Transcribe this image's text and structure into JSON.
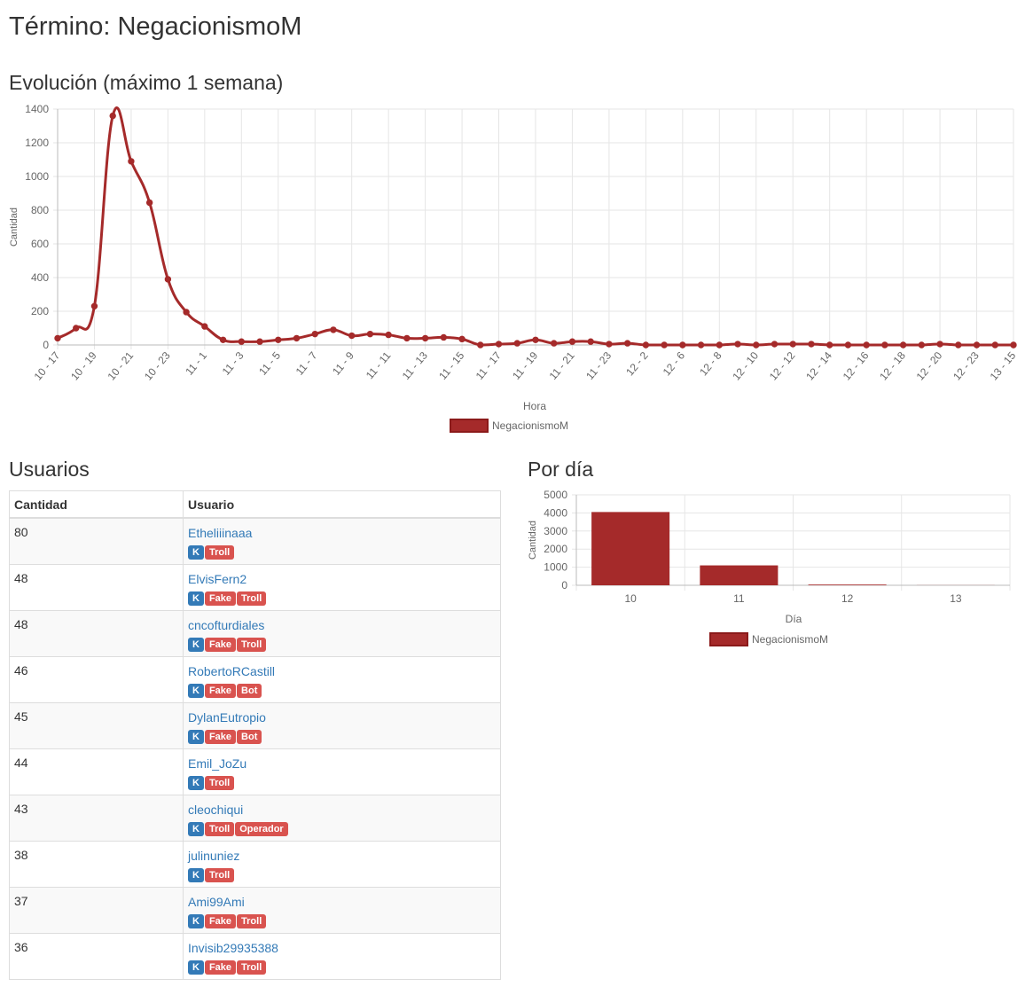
{
  "page": {
    "title": "Término: NegacionismoM"
  },
  "evolution": {
    "heading": "Evolución (máximo 1 semana)"
  },
  "users": {
    "heading": "Usuarios",
    "columns": [
      "Cantidad",
      "Usuario"
    ],
    "rows": [
      {
        "count": "80",
        "user": "Etheliiinaaa",
        "tags": [
          "K",
          "Troll"
        ]
      },
      {
        "count": "48",
        "user": "ElvisFern2",
        "tags": [
          "K",
          "Fake",
          "Troll"
        ]
      },
      {
        "count": "48",
        "user": "cncofturdiales",
        "tags": [
          "K",
          "Fake",
          "Troll"
        ]
      },
      {
        "count": "46",
        "user": "RobertoRCastill",
        "tags": [
          "K",
          "Fake",
          "Bot"
        ]
      },
      {
        "count": "45",
        "user": "DylanEutropio",
        "tags": [
          "K",
          "Fake",
          "Bot"
        ]
      },
      {
        "count": "44",
        "user": "Emil_JoZu",
        "tags": [
          "K",
          "Troll"
        ]
      },
      {
        "count": "43",
        "user": "cleochiqui",
        "tags": [
          "K",
          "Troll",
          "Operador"
        ]
      },
      {
        "count": "38",
        "user": "julinuniez",
        "tags": [
          "K",
          "Troll"
        ]
      },
      {
        "count": "37",
        "user": "Ami99Ami",
        "tags": [
          "K",
          "Fake",
          "Troll"
        ]
      },
      {
        "count": "36",
        "user": "Invisib29935388",
        "tags": [
          "K",
          "Fake",
          "Troll"
        ]
      }
    ]
  },
  "per_day": {
    "heading": "Por día"
  },
  "colors": {
    "series": "#a52a2a",
    "link": "#337ab7",
    "badge_k": "#337ab7",
    "badge_red": "#d9534f",
    "grid": "#e6e6e6"
  },
  "chart_data": [
    {
      "type": "line",
      "xlabel": "Hora",
      "ylabel": "Cantidad",
      "ylim": [
        0,
        1400
      ],
      "yticks": [
        0,
        200,
        400,
        600,
        800,
        1000,
        1200,
        1400
      ],
      "grid": true,
      "legend_position": "bottom",
      "x": [
        "10 - 17",
        "10 - 18",
        "10 - 19",
        "10 - 20",
        "10 - 21",
        "10 - 22",
        "10 - 23",
        "11 - 0",
        "11 - 1",
        "11 - 2",
        "11 - 3",
        "11 - 4",
        "11 - 5",
        "11 - 6",
        "11 - 7",
        "11 - 8",
        "11 - 9",
        "11 - 10",
        "11 - 11",
        "11 - 12",
        "11 - 13",
        "11 - 14",
        "11 - 15",
        "11 - 16",
        "11 - 17",
        "11 - 18",
        "11 - 19",
        "11 - 20",
        "11 - 21",
        "11 - 22",
        "11 - 23",
        "12 - 0",
        "12 - 2",
        "12 - 4",
        "12 - 6",
        "12 - 7",
        "12 - 8",
        "12 - 9",
        "12 - 10",
        "12 - 11",
        "12 - 12",
        "12 - 13",
        "12 - 14",
        "12 - 15",
        "12 - 16",
        "12 - 17",
        "12 - 18",
        "12 - 19",
        "12 - 20",
        "12 - 21",
        "12 - 23",
        "13 - 0",
        "13 - 15"
      ],
      "tick_labels": [
        "10 - 17",
        "10 - 19",
        "10 - 21",
        "10 - 23",
        "11 - 1",
        "11 - 3",
        "11 - 5",
        "11 - 7",
        "11 - 9",
        "11 - 11",
        "11 - 13",
        "11 - 15",
        "11 - 17",
        "11 - 19",
        "11 - 21",
        "11 - 23",
        "12 - 2",
        "12 - 6",
        "12 - 8",
        "12 - 10",
        "12 - 12",
        "12 - 14",
        "12 - 16",
        "12 - 18",
        "12 - 20",
        "12 - 23",
        "13 - 15"
      ],
      "series": [
        {
          "name": "NegacionismoM",
          "values": [
            40,
            100,
            230,
            1360,
            1090,
            845,
            390,
            195,
            110,
            30,
            20,
            20,
            30,
            40,
            65,
            90,
            55,
            65,
            60,
            40,
            40,
            45,
            35,
            0,
            5,
            10,
            30,
            10,
            20,
            20,
            5,
            10,
            0,
            0,
            0,
            0,
            0,
            5,
            0,
            5,
            5,
            5,
            0,
            0,
            0,
            0,
            0,
            0,
            5,
            0,
            0,
            0,
            0
          ]
        }
      ]
    },
    {
      "type": "bar",
      "xlabel": "Día",
      "ylabel": "Cantidad",
      "ylim": [
        0,
        5000
      ],
      "yticks": [
        0,
        1000,
        2000,
        3000,
        4000,
        5000
      ],
      "grid": true,
      "legend_position": "bottom",
      "categories": [
        "10",
        "11",
        "12",
        "13"
      ],
      "series": [
        {
          "name": "NegacionismoM",
          "values": [
            4050,
            1100,
            40,
            5
          ]
        }
      ]
    }
  ]
}
